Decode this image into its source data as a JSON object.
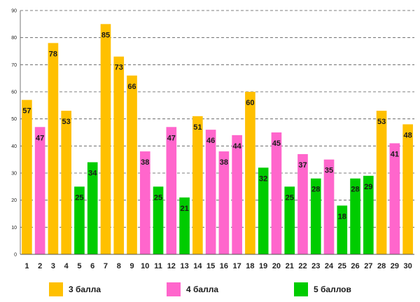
{
  "chart_data": {
    "type": "bar",
    "title": "",
    "xlabel": "",
    "ylabel": "",
    "ylim": [
      0,
      90
    ],
    "yticks": [
      0,
      10,
      20,
      30,
      40,
      50,
      60,
      70,
      80,
      90
    ],
    "grid": true,
    "categories": [
      "1",
      "2",
      "3",
      "4",
      "5",
      "6",
      "7",
      "8",
      "9",
      "10",
      "11",
      "12",
      "13",
      "14",
      "15",
      "16",
      "17",
      "18",
      "19",
      "20",
      "21",
      "22",
      "23",
      "24",
      "25",
      "26",
      "27",
      "28",
      "29",
      "30"
    ],
    "values": [
      57,
      47,
      78,
      53,
      25,
      34,
      85,
      73,
      66,
      38,
      25,
      47,
      21,
      51,
      46,
      38,
      44,
      60,
      32,
      45,
      25,
      37,
      28,
      35,
      18,
      28,
      29,
      53,
      41,
      48
    ],
    "groups": [
      "g3",
      "g4",
      "g3",
      "g3",
      "g5",
      "g5",
      "g3",
      "g3",
      "g3",
      "g4",
      "g5",
      "g4",
      "g5",
      "g3",
      "g4",
      "g4",
      "g4",
      "g3",
      "g5",
      "g4",
      "g5",
      "g4",
      "g5",
      "g4",
      "g5",
      "g5",
      "g5",
      "g3",
      "g4",
      "g3"
    ],
    "legend_position": "bottom",
    "legend": [
      {
        "key": "g3",
        "label": "3 балла",
        "color": "#FFC000"
      },
      {
        "key": "g4",
        "label": "4 балла",
        "color": "#FF66CC"
      },
      {
        "key": "g5",
        "label": "5 баллов",
        "color": "#00CC00"
      }
    ]
  }
}
